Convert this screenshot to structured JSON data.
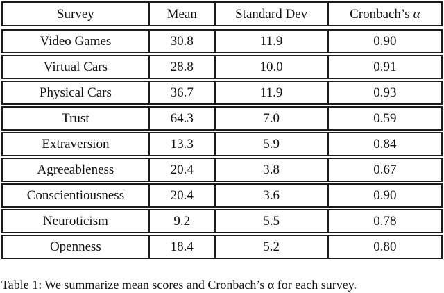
{
  "page": {
    "background": "#ffffff",
    "text_color": "#111111",
    "border_color": "#1c1c1c"
  },
  "table": {
    "header": {
      "survey": "Survey",
      "mean": "Mean",
      "std": "Standard Dev",
      "cronbach_prefix": "Cronbach’s",
      "alpha_symbol": "α"
    },
    "rows": [
      {
        "survey": "Video Games",
        "mean": "30.8",
        "std": "11.9",
        "alpha": "0.90"
      },
      {
        "survey": "Virtual Cars",
        "mean": "28.8",
        "std": "10.0",
        "alpha": "0.91"
      },
      {
        "survey": "Physical Cars",
        "mean": "36.7",
        "std": "11.9",
        "alpha": "0.93"
      },
      {
        "survey": "Trust",
        "mean": "64.3",
        "std": "7.0",
        "alpha": "0.59"
      },
      {
        "survey": "Extraversion",
        "mean": "13.3",
        "std": "5.9",
        "alpha": "0.84"
      },
      {
        "survey": "Agreeableness",
        "mean": "20.4",
        "std": "3.8",
        "alpha": "0.67"
      },
      {
        "survey": "Conscientiousness",
        "mean": "20.4",
        "std": "3.6",
        "alpha": "0.90"
      },
      {
        "survey": "Neuroticism",
        "mean": "9.2",
        "std": "5.5",
        "alpha": "0.78"
      },
      {
        "survey": "Openness",
        "mean": "18.4",
        "std": "5.2",
        "alpha": "0.80"
      }
    ]
  },
  "caption": {
    "text": "Table 1: We summarize mean scores and Cronbach’s α for each survey."
  }
}
